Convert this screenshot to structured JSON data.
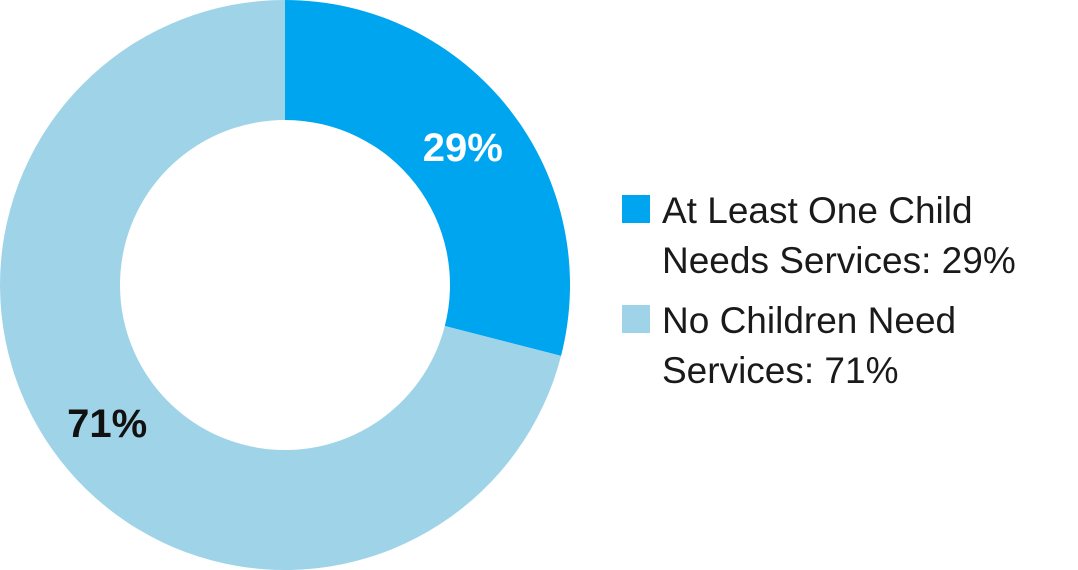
{
  "chart_data": {
    "type": "pie",
    "donut": true,
    "slices": [
      {
        "label": "At Least One Child Needs Services: 29%",
        "value": 29,
        "display": "29%",
        "color": "#00a5f0",
        "text_color": "#ffffff"
      },
      {
        "label": "No Children Need Services: 71%",
        "value": 71,
        "display": "71%",
        "color": "#9fd3e8",
        "text_color": "#111111"
      }
    ],
    "legend_position": "right",
    "start_angle": "top",
    "direction": "clockwise"
  }
}
